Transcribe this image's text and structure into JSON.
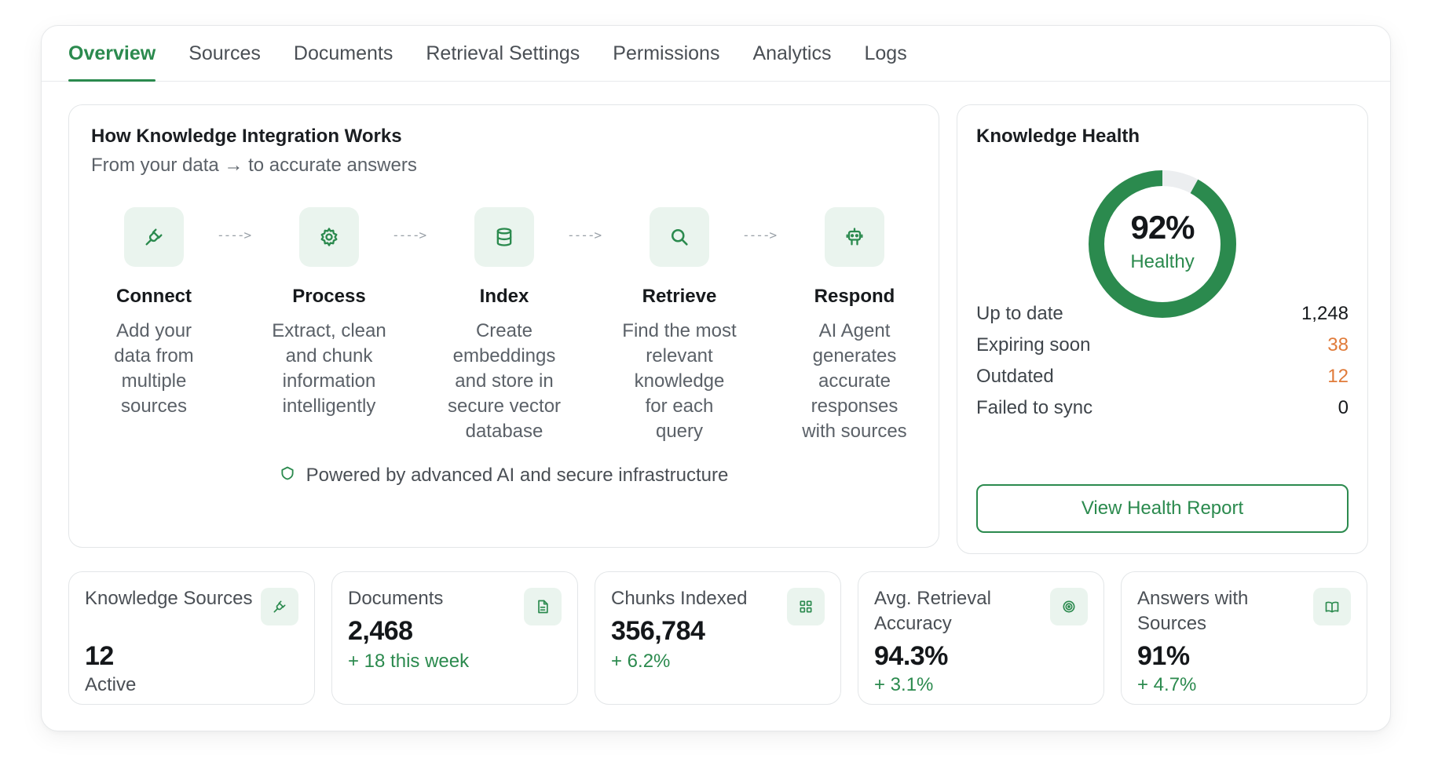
{
  "tabs": [
    {
      "label": "Overview",
      "active": true
    },
    {
      "label": "Sources"
    },
    {
      "label": "Documents"
    },
    {
      "label": "Retrieval Settings"
    },
    {
      "label": "Permissions"
    },
    {
      "label": "Analytics"
    },
    {
      "label": "Logs"
    }
  ],
  "how": {
    "title": "How Knowledge Integration Works",
    "subtitle": "From your data → to accurate answers",
    "steps": [
      {
        "icon": "plug-icon",
        "name": "Connect",
        "desc": [
          "Add your",
          "data from",
          "multiple",
          "sources"
        ]
      },
      {
        "icon": "gear-icon",
        "name": "Process",
        "desc": [
          "Extract, clean",
          "and chunk",
          "information",
          "intelligently"
        ]
      },
      {
        "icon": "database-icon",
        "name": "Index",
        "desc": [
          "Create",
          "embeddings",
          "and store in",
          "secure vector",
          "database"
        ]
      },
      {
        "icon": "search-icon",
        "name": "Retrieve",
        "desc": [
          "Find the most",
          "relevant",
          "knowledge",
          "for each",
          "query"
        ]
      },
      {
        "icon": "robot-icon",
        "name": "Respond",
        "desc": [
          "AI Agent",
          "generates",
          "accurate",
          "responses",
          "with sources"
        ]
      }
    ],
    "arrow": "---->",
    "powered": "Powered by advanced AI and secure infrastructure"
  },
  "health": {
    "title": "Knowledge Health",
    "percent": 92,
    "percent_label": "92%",
    "status": "Healthy",
    "rows": [
      {
        "label": "Up to date",
        "value": "1,248",
        "tone": "normal"
      },
      {
        "label": "Expiring soon",
        "value": "38",
        "tone": "warn"
      },
      {
        "label": "Outdated",
        "value": "12",
        "tone": "warn"
      },
      {
        "label": "Failed to sync",
        "value": "0",
        "tone": "normal"
      }
    ],
    "button": "View Health Report"
  },
  "stats": [
    {
      "label": "Knowledge Sources",
      "value": "12",
      "note": "Active",
      "note_tone": "muted",
      "icon": "plug-icon"
    },
    {
      "label": "Documents",
      "value": "2,468",
      "note": "+ 18 this week",
      "note_tone": "green",
      "icon": "document-icon"
    },
    {
      "label": "Chunks Indexed",
      "value": "356,784",
      "note": "+ 6.2%",
      "note_tone": "green",
      "icon": "grid-icon"
    },
    {
      "label": "Avg. Retrieval Accuracy",
      "value": "94.3%",
      "note": "+ 3.1%",
      "note_tone": "green",
      "icon": "target-icon"
    },
    {
      "label": "Answers with Sources",
      "value": "91%",
      "note": "+ 4.7%",
      "note_tone": "green",
      "icon": "book-icon"
    }
  ],
  "colors": {
    "accent": "#2b8a4e",
    "accent_soft": "#eaf4ee",
    "warn": "#e07b3a",
    "track": "#eceef0"
  }
}
